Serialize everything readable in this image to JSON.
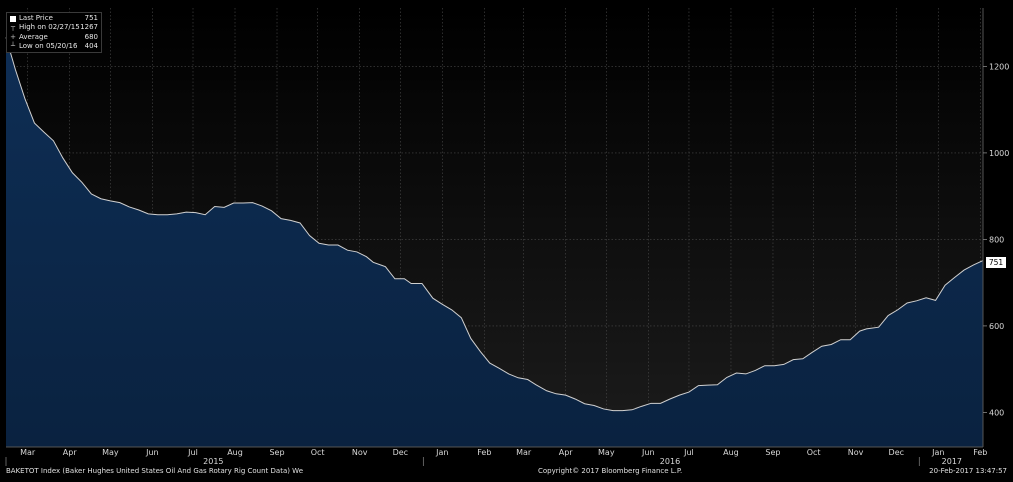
{
  "legend": {
    "last_price_label": "Last Price",
    "last_price_value": "751",
    "high_label": "High on 02/27/15",
    "high_value": "1267",
    "average_label": "Average",
    "average_value": "680",
    "low_label": "Low on 05/20/16",
    "low_value": "404"
  },
  "last_value_label": "751",
  "footer": {
    "left": "BAKETOT Index (Baker Hughes United States Oil And Gas Rotary Rig Count Data)  We",
    "center": "Copyright© 2017 Bloomberg Finance L.P.",
    "right": "20-Feb-2017 13:47:57"
  },
  "colors": {
    "background_top": "#000000",
    "background_bottom": "#1a1a1a",
    "area_fill": "#0d2a4d",
    "line": "#d0d0d0",
    "last_price_marker": "#ff9900"
  },
  "chart_data": {
    "type": "area",
    "title": "",
    "xlabel": "",
    "ylabel": "",
    "ylim": [
      320,
      1335
    ],
    "yticks": [
      400,
      600,
      800,
      1000,
      1200
    ],
    "grid": true,
    "x_range": [
      "2015-02-27",
      "2017-02-17"
    ],
    "month_ticks": [
      {
        "label": "Mar",
        "date": "2015-03-15"
      },
      {
        "label": "Apr",
        "date": "2015-04-15"
      },
      {
        "label": "May",
        "date": "2015-05-15"
      },
      {
        "label": "Jun",
        "date": "2015-06-15"
      },
      {
        "label": "Jul",
        "date": "2015-07-15"
      },
      {
        "label": "Aug",
        "date": "2015-08-15"
      },
      {
        "label": "Sep",
        "date": "2015-09-15"
      },
      {
        "label": "Oct",
        "date": "2015-10-15"
      },
      {
        "label": "Nov",
        "date": "2015-11-15"
      },
      {
        "label": "Dec",
        "date": "2015-12-15"
      },
      {
        "label": "Jan",
        "date": "2016-01-15"
      },
      {
        "label": "Feb",
        "date": "2016-02-15"
      },
      {
        "label": "Mar",
        "date": "2016-03-15"
      },
      {
        "label": "Apr",
        "date": "2016-04-15"
      },
      {
        "label": "May",
        "date": "2016-05-15"
      },
      {
        "label": "Jun",
        "date": "2016-06-15"
      },
      {
        "label": "Jul",
        "date": "2016-07-15"
      },
      {
        "label": "Aug",
        "date": "2016-08-15"
      },
      {
        "label": "Sep",
        "date": "2016-09-15"
      },
      {
        "label": "Oct",
        "date": "2016-10-15"
      },
      {
        "label": "Nov",
        "date": "2016-11-15"
      },
      {
        "label": "Dec",
        "date": "2016-12-15"
      },
      {
        "label": "Jan",
        "date": "2017-01-15"
      },
      {
        "label": "Feb",
        "date": "2017-02-15"
      }
    ],
    "year_labels": [
      {
        "label": "2015",
        "date": "2015-07-30",
        "sep": "2015-01-01"
      },
      {
        "label": "2016",
        "date": "2016-07-01",
        "sep": "2016-01-01"
      },
      {
        "label": "2017",
        "date": "2017-01-25",
        "sep": "2017-01-01"
      }
    ],
    "series": [
      {
        "x": [
          "2015-02-27",
          "2015-03-06",
          "2015-03-13",
          "2015-03-20",
          "2015-03-27",
          "2015-04-03",
          "2015-04-10",
          "2015-04-17",
          "2015-04-24",
          "2015-05-01",
          "2015-05-08",
          "2015-05-15",
          "2015-05-22",
          "2015-05-29",
          "2015-06-05",
          "2015-06-12",
          "2015-06-19",
          "2015-06-26",
          "2015-07-03",
          "2015-07-10",
          "2015-07-17",
          "2015-07-24",
          "2015-07-31",
          "2015-08-07",
          "2015-08-14",
          "2015-08-21",
          "2015-08-28",
          "2015-09-04",
          "2015-09-11",
          "2015-09-18",
          "2015-09-25",
          "2015-10-02",
          "2015-10-09",
          "2015-10-16",
          "2015-10-23",
          "2015-10-30",
          "2015-11-06",
          "2015-11-13",
          "2015-11-20",
          "2015-11-25",
          "2015-12-04",
          "2015-12-11",
          "2015-12-18",
          "2015-12-23",
          "2015-12-31",
          "2016-01-08",
          "2016-01-15",
          "2016-01-22",
          "2016-01-29",
          "2016-02-05",
          "2016-02-12",
          "2016-02-19",
          "2016-02-26",
          "2016-03-04",
          "2016-03-11",
          "2016-03-18",
          "2016-03-24",
          "2016-04-01",
          "2016-04-08",
          "2016-04-15",
          "2016-04-22",
          "2016-04-29",
          "2016-05-06",
          "2016-05-13",
          "2016-05-20",
          "2016-05-27",
          "2016-06-03",
          "2016-06-10",
          "2016-06-17",
          "2016-06-24",
          "2016-07-01",
          "2016-07-08",
          "2016-07-15",
          "2016-07-22",
          "2016-07-29",
          "2016-08-05",
          "2016-08-12",
          "2016-08-19",
          "2016-08-26",
          "2016-09-02",
          "2016-09-09",
          "2016-09-16",
          "2016-09-23",
          "2016-09-30",
          "2016-10-07",
          "2016-10-14",
          "2016-10-21",
          "2016-10-28",
          "2016-11-04",
          "2016-11-11",
          "2016-11-18",
          "2016-11-23",
          "2016-12-02",
          "2016-12-09",
          "2016-12-16",
          "2016-12-23",
          "2016-12-30",
          "2017-01-06",
          "2017-01-13",
          "2017-01-20",
          "2017-01-27",
          "2017-02-03",
          "2017-02-10",
          "2017-02-17"
        ],
        "values": [
          1267,
          1192,
          1125,
          1069,
          1048,
          1028,
          988,
          954,
          932,
          905,
          894,
          889,
          885,
          875,
          868,
          859,
          857,
          857,
          859,
          863,
          862,
          857,
          876,
          874,
          884,
          884,
          885,
          877,
          866,
          848,
          844,
          838,
          809,
          791,
          787,
          787,
          775,
          771,
          760,
          747,
          737,
          709,
          709,
          698,
          698,
          664,
          650,
          637,
          619,
          571,
          541,
          514,
          502,
          489,
          480,
          476,
          464,
          450,
          443,
          440,
          431,
          420,
          416,
          408,
          404,
          404,
          406,
          414,
          421,
          421,
          431,
          440,
          447,
          462,
          463,
          464,
          481,
          491,
          489,
          497,
          508,
          508,
          511,
          522,
          524,
          539,
          553,
          557,
          568,
          568,
          588,
          593,
          597,
          624,
          637,
          653,
          658,
          665,
          659,
          694,
          712,
          729,
          741,
          751
        ]
      }
    ]
  }
}
